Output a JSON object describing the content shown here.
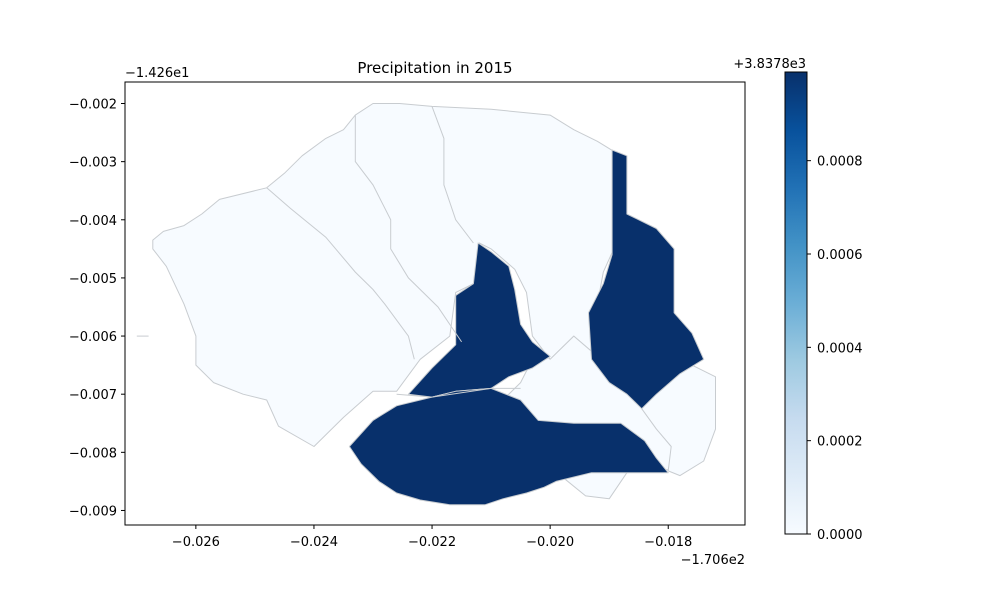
{
  "chart_data": {
    "type": "heatmap",
    "title": "Precipitation in 2015",
    "xlabel": "",
    "ylabel": "",
    "x_offset_text": "−1.706e2",
    "y_offset_text": "−1.426e1",
    "xlim": [
      -0.0272,
      -0.0167
    ],
    "ylim": [
      -0.00925,
      -0.00163
    ],
    "x_ticks": [
      "−0.026",
      "−0.024",
      "−0.022",
      "−0.020",
      "−0.018"
    ],
    "x_tick_values": [
      -0.026,
      -0.024,
      -0.022,
      -0.02,
      -0.018
    ],
    "y_ticks": [
      "−0.002",
      "−0.003",
      "−0.004",
      "−0.005",
      "−0.006",
      "−0.007",
      "−0.008",
      "−0.009"
    ],
    "y_tick_values": [
      -0.002,
      -0.003,
      -0.004,
      -0.005,
      -0.006,
      -0.007,
      -0.008,
      -0.009
    ],
    "colorbar": {
      "colormap": "Blues",
      "offset_text": "+3.8378e3",
      "range": [
        0.0,
        0.00099
      ],
      "ticks": [
        "0.0000",
        "0.0002",
        "0.0004",
        "0.0006",
        "0.0008"
      ],
      "tick_values": [
        0.0,
        0.0002,
        0.0004,
        0.0006,
        0.0008
      ]
    },
    "regions": [
      {
        "value": 0.0,
        "color": "#f7fbff",
        "points": [
          [
            -0.02673,
            -0.00435
          ],
          [
            -0.02655,
            -0.0042
          ],
          [
            -0.0262,
            -0.0041
          ],
          [
            -0.0259,
            -0.0039
          ],
          [
            -0.0256,
            -0.00365
          ],
          [
            -0.0248,
            -0.00345
          ],
          [
            -0.0245,
            -0.0032
          ],
          [
            -0.0242,
            -0.0029
          ],
          [
            -0.0238,
            -0.0026
          ],
          [
            -0.0235,
            -0.00245
          ],
          [
            -0.0233,
            -0.0022
          ],
          [
            -0.023,
            -0.002
          ],
          [
            -0.02255,
            -0.002
          ],
          [
            -0.022,
            -0.00205
          ],
          [
            -0.021,
            -0.0021
          ],
          [
            -0.02,
            -0.0022
          ],
          [
            -0.0196,
            -0.00245
          ],
          [
            -0.0192,
            -0.00265
          ],
          [
            -0.0188,
            -0.0029
          ],
          [
            -0.0189,
            -0.00445
          ],
          [
            -0.0191,
            -0.0049
          ],
          [
            -0.0193,
            -0.006
          ],
          [
            -0.0192,
            -0.00635
          ],
          [
            -0.0196,
            -0.006
          ],
          [
            -0.02,
            -0.0064
          ],
          [
            -0.0203,
            -0.006
          ],
          [
            -0.0204,
            -0.00525
          ],
          [
            -0.0206,
            -0.00485
          ],
          [
            -0.021,
            -0.0045
          ],
          [
            -0.0212,
            -0.0044
          ],
          [
            -0.0213,
            -0.0051
          ],
          [
            -0.0216,
            -0.00525
          ],
          [
            -0.0217,
            -0.006
          ],
          [
            -0.0222,
            -0.0064
          ],
          [
            -0.0226,
            -0.00695
          ],
          [
            -0.023,
            -0.00695
          ],
          [
            -0.0235,
            -0.0074
          ],
          [
            -0.024,
            -0.0079
          ],
          [
            -0.0246,
            -0.00755
          ],
          [
            -0.0248,
            -0.0071
          ],
          [
            -0.0252,
            -0.007
          ],
          [
            -0.0257,
            -0.0068
          ],
          [
            -0.026,
            -0.0065
          ],
          [
            -0.026,
            -0.006
          ],
          [
            -0.0262,
            -0.00545
          ],
          [
            -0.0265,
            -0.0048
          ],
          [
            -0.02673,
            -0.0045
          ]
        ]
      },
      {
        "value": 0.0,
        "color": "#f7fbff",
        "points": [
          [
            -0.0202,
            -0.0062
          ],
          [
            -0.02,
            -0.0064
          ],
          [
            -0.0196,
            -0.006
          ],
          [
            -0.0192,
            -0.00635
          ],
          [
            -0.0188,
            -0.0066
          ],
          [
            -0.0184,
            -0.0071
          ],
          [
            -0.0183,
            -0.00745
          ],
          [
            -0.0178,
            -0.007
          ],
          [
            -0.0177,
            -0.0074
          ],
          [
            -0.0179,
            -0.0079
          ],
          [
            -0.018,
            -0.0083
          ],
          [
            -0.0187,
            -0.00835
          ],
          [
            -0.019,
            -0.0088
          ],
          [
            -0.0194,
            -0.00875
          ],
          [
            -0.0198,
            -0.00842
          ],
          [
            -0.0204,
            -0.00842
          ],
          [
            -0.0206,
            -0.0081
          ],
          [
            -0.021,
            -0.0073
          ],
          [
            -0.0205,
            -0.0068
          ]
        ]
      },
      {
        "value": 0.0,
        "color": "#f7fbff",
        "points": [
          [
            -0.01845,
            -0.00725
          ],
          [
            -0.0182,
            -0.00695
          ],
          [
            -0.0179,
            -0.00665
          ],
          [
            -0.0176,
            -0.0065
          ],
          [
            -0.0172,
            -0.0067
          ],
          [
            -0.0172,
            -0.0076
          ],
          [
            -0.0174,
            -0.00815
          ],
          [
            -0.0178,
            -0.0084
          ],
          [
            -0.018,
            -0.00832
          ],
          [
            -0.01795,
            -0.0079
          ],
          [
            -0.0182,
            -0.0076
          ]
        ]
      },
      {
        "value": 0.00099,
        "color": "#08306b",
        "points": [
          [
            -0.01895,
            -0.0028
          ],
          [
            -0.0187,
            -0.0029
          ],
          [
            -0.0187,
            -0.0039
          ],
          [
            -0.0182,
            -0.00415
          ],
          [
            -0.0179,
            -0.0045
          ],
          [
            -0.0179,
            -0.0056
          ],
          [
            -0.0176,
            -0.00595
          ],
          [
            -0.0174,
            -0.0064
          ],
          [
            -0.0178,
            -0.00665
          ],
          [
            -0.0182,
            -0.007
          ],
          [
            -0.01845,
            -0.00725
          ],
          [
            -0.0187,
            -0.007
          ],
          [
            -0.019,
            -0.0068
          ],
          [
            -0.0193,
            -0.0064
          ],
          [
            -0.01935,
            -0.0056
          ],
          [
            -0.0191,
            -0.0051
          ],
          [
            -0.01895,
            -0.0046
          ]
        ]
      },
      {
        "value": 0.00099,
        "color": "#08306b",
        "points": [
          [
            -0.02122,
            -0.0044
          ],
          [
            -0.021,
            -0.00455
          ],
          [
            -0.0207,
            -0.0048
          ],
          [
            -0.0206,
            -0.0052
          ],
          [
            -0.0205,
            -0.0058
          ],
          [
            -0.0203,
            -0.0061
          ],
          [
            -0.02,
            -0.00635
          ],
          [
            -0.0203,
            -0.00655
          ],
          [
            -0.0207,
            -0.0067
          ],
          [
            -0.021,
            -0.0069
          ],
          [
            -0.0216,
            -0.00695
          ],
          [
            -0.022,
            -0.00705
          ],
          [
            -0.0224,
            -0.007
          ],
          [
            -0.022,
            -0.00655
          ],
          [
            -0.0216,
            -0.00615
          ],
          [
            -0.0216,
            -0.0053
          ],
          [
            -0.0213,
            -0.0051
          ]
        ]
      },
      {
        "value": 0.00099,
        "color": "#08306b",
        "points": [
          [
            -0.0234,
            -0.0079
          ],
          [
            -0.023,
            -0.00745
          ],
          [
            -0.0226,
            -0.0072
          ],
          [
            -0.022,
            -0.00705
          ],
          [
            -0.0216,
            -0.00695
          ],
          [
            -0.021,
            -0.0069
          ],
          [
            -0.0205,
            -0.0071
          ],
          [
            -0.0202,
            -0.00745
          ],
          [
            -0.0196,
            -0.0075
          ],
          [
            -0.0188,
            -0.0075
          ],
          [
            -0.0184,
            -0.0078
          ],
          [
            -0.0182,
            -0.0081
          ],
          [
            -0.018,
            -0.00835
          ],
          [
            -0.0187,
            -0.00835
          ],
          [
            -0.0193,
            -0.00835
          ],
          [
            -0.0199,
            -0.0085
          ],
          [
            -0.0201,
            -0.0086
          ],
          [
            -0.0204,
            -0.0087
          ],
          [
            -0.0208,
            -0.0088
          ],
          [
            -0.0211,
            -0.0089
          ],
          [
            -0.0217,
            -0.0089
          ],
          [
            -0.0222,
            -0.00882
          ],
          [
            -0.0226,
            -0.0087
          ],
          [
            -0.0229,
            -0.0085
          ],
          [
            -0.0232,
            -0.0082
          ]
        ]
      }
    ],
    "internal_borders": [
      [
        [
          -0.0248,
          -0.00345
        ],
        [
          -0.0244,
          -0.0038
        ],
        [
          -0.0238,
          -0.0043
        ],
        [
          -0.0233,
          -0.0049
        ],
        [
          -0.023,
          -0.0052
        ],
        [
          -0.0228,
          -0.00545
        ],
        [
          -0.0224,
          -0.006
        ],
        [
          -0.0223,
          -0.0064
        ]
      ],
      [
        [
          -0.0233,
          -0.0022
        ],
        [
          -0.0233,
          -0.003
        ],
        [
          -0.023,
          -0.0034
        ],
        [
          -0.0227,
          -0.004
        ],
        [
          -0.0227,
          -0.0045
        ],
        [
          -0.0224,
          -0.005
        ],
        [
          -0.0219,
          -0.0055
        ],
        [
          -0.0215,
          -0.0061
        ]
      ],
      [
        [
          -0.022,
          -0.00205
        ],
        [
          -0.0218,
          -0.0026
        ],
        [
          -0.0218,
          -0.0034
        ],
        [
          -0.0216,
          -0.004
        ],
        [
          -0.0213,
          -0.0044
        ]
      ],
      [
        [
          -0.0226,
          -0.007
        ],
        [
          -0.022,
          -0.00705
        ],
        [
          -0.021,
          -0.0069
        ],
        [
          -0.0205,
          -0.0069
        ]
      ],
      [
        [
          -0.027,
          -0.006
        ],
        [
          -0.0268,
          -0.006
        ]
      ]
    ]
  }
}
